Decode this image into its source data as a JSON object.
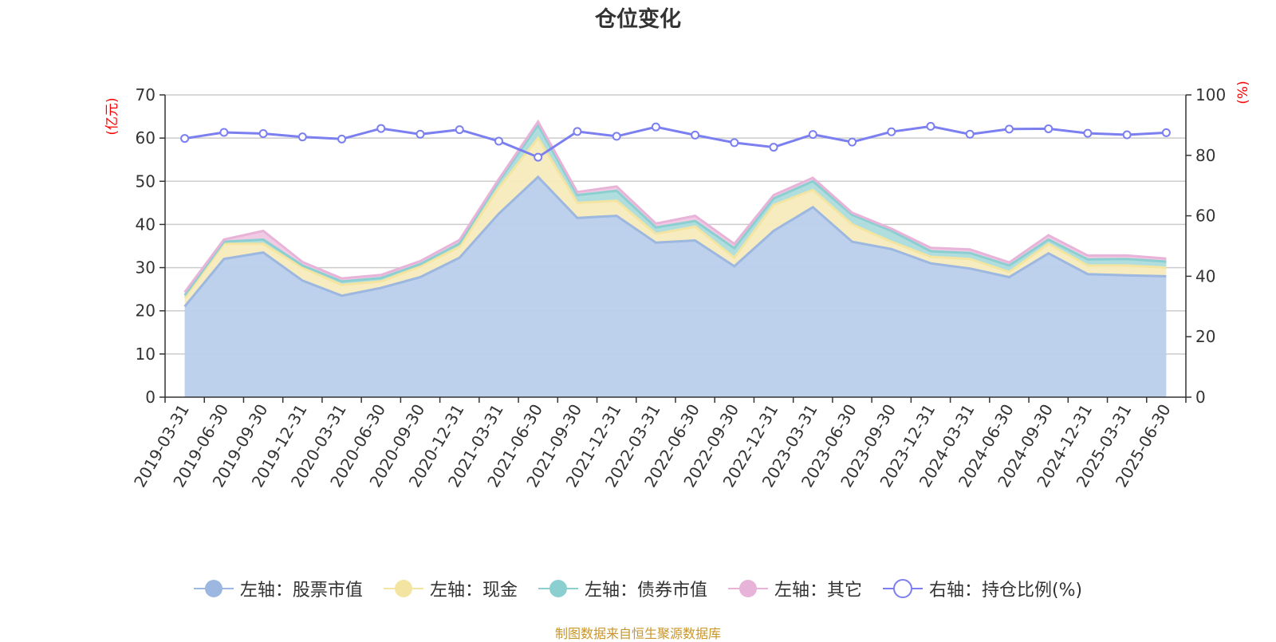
{
  "chart_data": {
    "type": "area",
    "title": "仓位变化",
    "left_axis_label": "(亿元)",
    "right_axis_label": "(%)",
    "left_ylim": [
      0,
      70
    ],
    "left_ticks": [
      0,
      10,
      20,
      30,
      40,
      50,
      60,
      70
    ],
    "right_ylim": [
      0,
      100
    ],
    "right_ticks": [
      0,
      20,
      40,
      60,
      80,
      100
    ],
    "grid": true,
    "legend_position": "bottom",
    "categories": [
      "2019-03-31",
      "2019-06-30",
      "2019-09-30",
      "2019-12-31",
      "2020-03-31",
      "2020-06-30",
      "2020-09-30",
      "2020-12-31",
      "2021-03-31",
      "2021-06-30",
      "2021-09-30",
      "2021-12-31",
      "2022-03-31",
      "2022-06-30",
      "2022-09-30",
      "2022-12-31",
      "2023-03-31",
      "2023-06-30",
      "2023-09-30",
      "2023-12-31",
      "2024-03-31",
      "2024-06-30",
      "2024-09-30",
      "2024-12-31",
      "2025-03-31",
      "2025-06-30"
    ],
    "stacked_series": [
      {
        "name": "左轴：股票市值",
        "color": "#9cb7e0",
        "fill": "#b9cdeb",
        "values": [
          21.0,
          32.0,
          33.5,
          27.0,
          23.5,
          25.3,
          27.8,
          32.3,
          42.5,
          51.0,
          41.5,
          42.0,
          35.8,
          36.3,
          30.3,
          38.5,
          44.0,
          36.0,
          34.3,
          31.0,
          29.8,
          27.8,
          33.3,
          28.5,
          28.2,
          28.0
        ]
      },
      {
        "name": "左轴：现金",
        "color": "#f3e4a1",
        "fill": "#f7ebbd",
        "values": [
          2.0,
          3.5,
          2.0,
          3.0,
          2.5,
          1.5,
          2.5,
          2.5,
          6.0,
          9.0,
          3.5,
          3.5,
          2.0,
          3.2,
          2.0,
          6.0,
          4.0,
          4.0,
          1.7,
          1.5,
          2.2,
          1.2,
          2.2,
          2.0,
          2.3,
          2.0
        ]
      },
      {
        "name": "左轴：债券市值",
        "color": "#8ccfd1",
        "fill": "#acdcdc",
        "values": [
          0.6,
          0.5,
          1.0,
          0.5,
          0.8,
          0.8,
          0.5,
          0.8,
          1.5,
          3.0,
          1.8,
          2.3,
          1.5,
          1.3,
          2.2,
          1.5,
          2.0,
          2.2,
          2.5,
          1.3,
          1.4,
          1.5,
          1.0,
          1.4,
          1.5,
          1.4
        ]
      },
      {
        "name": "左轴：其它",
        "color": "#e8b3d8",
        "fill": "#f0c8e3",
        "values": [
          0.7,
          0.5,
          2.0,
          0.8,
          0.7,
          0.7,
          0.7,
          0.8,
          0.5,
          0.8,
          0.7,
          1.0,
          0.9,
          1.2,
          1.0,
          0.8,
          0.8,
          0.5,
          0.5,
          0.8,
          0.8,
          0.7,
          1.0,
          0.9,
          0.8,
          0.7
        ]
      }
    ],
    "line_series": {
      "name": "右轴：持仓比例(%)",
      "color": "#7b7ff0",
      "values": [
        85.6,
        87.6,
        87.2,
        86.1,
        85.4,
        88.9,
        87.0,
        88.5,
        84.7,
        79.4,
        87.9,
        86.3,
        89.4,
        86.7,
        84.2,
        82.7,
        86.9,
        84.4,
        87.8,
        89.6,
        87.0,
        88.7,
        88.8,
        87.3,
        86.8,
        87.5
      ]
    },
    "source": "制图数据来自恒生聚源数据库"
  }
}
